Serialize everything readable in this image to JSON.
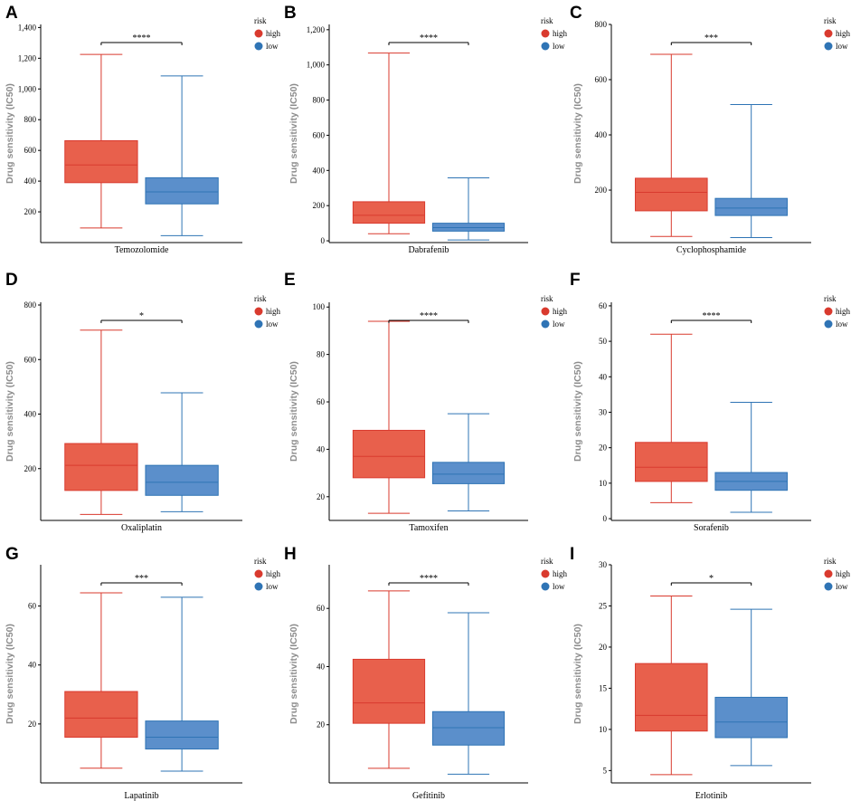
{
  "colors": {
    "high_fill": "#e8604c",
    "high_line": "#d93a2e",
    "low_fill": "#5b8fcb",
    "low_line": "#2f74b5",
    "axis": "#000000",
    "ylabel": "#8c8c8c"
  },
  "legend": {
    "title": "risk",
    "groups": [
      "high",
      "low"
    ]
  },
  "ylabel": "Drug sensitivity (IC50)",
  "chart_data": [
    {
      "type": "box",
      "letter": "A",
      "title": "Temozolomide",
      "xlabel": "Temozolomide",
      "ylabel": "Drug sensitivity (IC50)",
      "ylim": [
        0,
        1420
      ],
      "yticks": [
        200,
        400,
        600,
        800,
        1000,
        1200,
        1400
      ],
      "ytick_labels": [
        "200",
        "400",
        "600",
        "800",
        "1,000",
        "1,200",
        "1,400"
      ],
      "significance": "****",
      "groups": [
        {
          "name": "high",
          "min": 95,
          "q1": 390,
          "median": 505,
          "q3": 663,
          "max": 1225
        },
        {
          "name": "low",
          "min": 45,
          "q1": 252,
          "median": 330,
          "q3": 422,
          "max": 1085
        }
      ]
    },
    {
      "type": "box",
      "letter": "B",
      "title": "Dabrafenib",
      "xlabel": "Dabrafenib",
      "ylabel": "Drug sensitivity (IC50)",
      "ylim": [
        -10,
        1230
      ],
      "yticks": [
        0,
        200,
        400,
        600,
        800,
        1000,
        1200
      ],
      "ytick_labels": [
        "0",
        "200",
        "400",
        "600",
        "800",
        "1,000",
        "1,200"
      ],
      "significance": "****",
      "groups": [
        {
          "name": "high",
          "min": 40,
          "q1": 100,
          "median": 145,
          "q3": 222,
          "max": 1067
        },
        {
          "name": "low",
          "min": 5,
          "q1": 55,
          "median": 75,
          "q3": 100,
          "max": 358
        }
      ]
    },
    {
      "type": "box",
      "letter": "C",
      "title": "Cyclophosphamide",
      "xlabel": "Cyclophosphamide",
      "ylabel": "Drug sensitivity (IC50)",
      "ylim": [
        10,
        800
      ],
      "yticks": [
        200,
        400,
        600,
        800
      ],
      "ytick_labels": [
        "200",
        "400",
        "600",
        "800"
      ],
      "significance": "***",
      "groups": [
        {
          "name": "high",
          "min": 32,
          "q1": 125,
          "median": 192,
          "q3": 243,
          "max": 692
        },
        {
          "name": "low",
          "min": 28,
          "q1": 108,
          "median": 135,
          "q3": 170,
          "max": 510
        }
      ]
    },
    {
      "type": "box",
      "letter": "D",
      "title": "Oxaliplatin",
      "xlabel": "Oxaliplatin",
      "ylabel": "Drug sensitivity (IC50)",
      "ylim": [
        10,
        810
      ],
      "yticks": [
        200,
        400,
        600,
        800
      ],
      "ytick_labels": [
        "200",
        "400",
        "600",
        "800"
      ],
      "significance": "*",
      "groups": [
        {
          "name": "high",
          "min": 32,
          "q1": 120,
          "median": 212,
          "q3": 292,
          "max": 708
        },
        {
          "name": "low",
          "min": 42,
          "q1": 102,
          "median": 150,
          "q3": 212,
          "max": 478
        }
      ]
    },
    {
      "type": "box",
      "letter": "E",
      "title": "Tamoxifen",
      "xlabel": "Tamoxifen",
      "ylabel": "Drug sensitivity (IC50)",
      "ylim": [
        10,
        102
      ],
      "yticks": [
        20,
        40,
        60,
        80,
        100
      ],
      "ytick_labels": [
        "20",
        "40",
        "60",
        "80",
        "100"
      ],
      "significance": "****",
      "groups": [
        {
          "name": "high",
          "min": 13,
          "q1": 28,
          "median": 37,
          "q3": 48,
          "max": 94
        },
        {
          "name": "low",
          "min": 14,
          "q1": 25.5,
          "median": 29.5,
          "q3": 34.5,
          "max": 55
        }
      ]
    },
    {
      "type": "box",
      "letter": "F",
      "title": "Sorafenib",
      "xlabel": "Sorafenib",
      "ylabel": "Drug sensitivity (IC50)",
      "ylim": [
        -0.5,
        61
      ],
      "yticks": [
        0,
        10,
        20,
        30,
        40,
        50,
        60
      ],
      "ytick_labels": [
        "0",
        "10",
        "20",
        "30",
        "40",
        "50",
        "60"
      ],
      "significance": "****",
      "groups": [
        {
          "name": "high",
          "min": 4.5,
          "q1": 10.5,
          "median": 14.5,
          "q3": 21.5,
          "max": 52
        },
        {
          "name": "low",
          "min": 1.8,
          "q1": 8,
          "median": 10.5,
          "q3": 13,
          "max": 32.8
        }
      ]
    },
    {
      "type": "box",
      "letter": "G",
      "title": "Lapatinib",
      "xlabel": "Lapatinib",
      "ylabel": "Drug sensitivity (IC50)",
      "ylim": [
        0,
        74
      ],
      "yticks": [
        20,
        40,
        60
      ],
      "ytick_labels": [
        "20",
        "40",
        "60"
      ],
      "significance": "***",
      "groups": [
        {
          "name": "high",
          "min": 5,
          "q1": 15.5,
          "median": 22,
          "q3": 31,
          "max": 64.5
        },
        {
          "name": "low",
          "min": 4,
          "q1": 11.5,
          "median": 15.5,
          "q3": 21,
          "max": 63
        }
      ]
    },
    {
      "type": "box",
      "letter": "H",
      "title": "Gefitinib",
      "xlabel": "Gefitinib",
      "ylabel": "Drug sensitivity (IC50)",
      "ylim": [
        0,
        75
      ],
      "yticks": [
        20,
        40,
        60
      ],
      "ytick_labels": [
        "20",
        "40",
        "60"
      ],
      "significance": "****",
      "groups": [
        {
          "name": "high",
          "min": 5,
          "q1": 20.5,
          "median": 27.5,
          "q3": 42.5,
          "max": 66
        },
        {
          "name": "low",
          "min": 3,
          "q1": 13,
          "median": 19,
          "q3": 24.5,
          "max": 58.5
        }
      ]
    },
    {
      "type": "box",
      "letter": "I",
      "title": "Erlotinib",
      "xlabel": "Erlotinib",
      "ylabel": "Drug sensitivity (IC50)",
      "ylim": [
        3.5,
        30
      ],
      "yticks": [
        5,
        10,
        15,
        20,
        25,
        30
      ],
      "ytick_labels": [
        "5",
        "10",
        "15",
        "20",
        "25",
        "30"
      ],
      "significance": "*",
      "groups": [
        {
          "name": "high",
          "min": 4.5,
          "q1": 9.8,
          "median": 11.7,
          "q3": 18,
          "max": 26.2
        },
        {
          "name": "low",
          "min": 5.6,
          "q1": 9,
          "median": 10.9,
          "q3": 13.9,
          "max": 24.6
        }
      ]
    }
  ]
}
